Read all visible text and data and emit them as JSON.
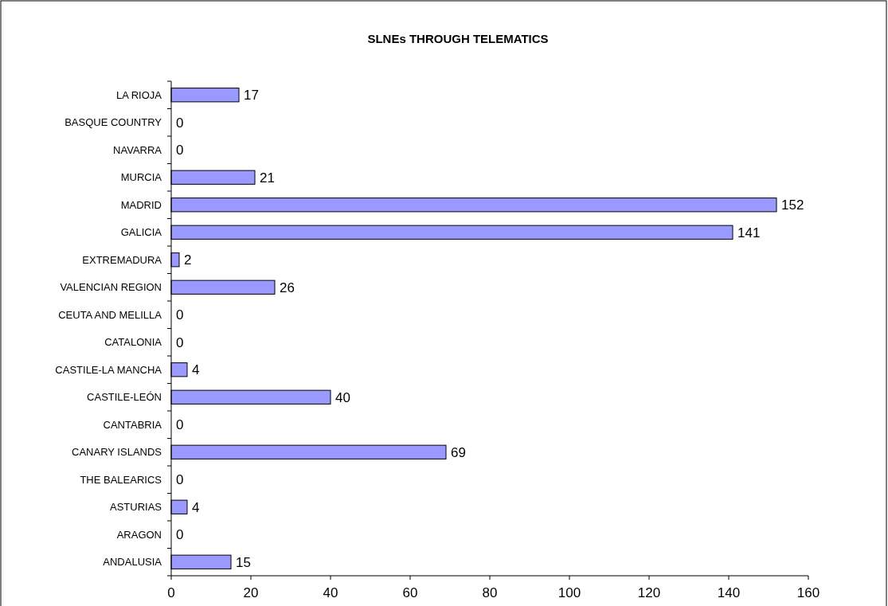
{
  "chart_data": {
    "type": "bar",
    "orientation": "horizontal",
    "title": "SLNEs THROUGH TELEMATICS",
    "categories": [
      "LA RIOJA",
      "BASQUE COUNTRY",
      "NAVARRA",
      "MURCIA",
      "MADRID",
      "GALICIA",
      "EXTREMADURA",
      "VALENCIAN REGION",
      "CEUTA AND MELILLA",
      "CATALONIA",
      "CASTILE-LA MANCHA",
      "CASTILE-LEÓN",
      "CANTABRIA",
      "CANARY ISLANDS",
      "THE BALEARICS",
      "ASTURIAS",
      "ARAGON",
      "ANDALUSIA"
    ],
    "values": [
      17,
      0,
      0,
      21,
      152,
      141,
      2,
      26,
      0,
      0,
      4,
      40,
      0,
      69,
      0,
      4,
      0,
      15
    ],
    "color": "#9999ff",
    "xlim": [
      0,
      160
    ],
    "xticks": [
      0,
      20,
      40,
      60,
      80,
      100,
      120,
      140,
      160
    ],
    "data_labels": true,
    "grid": false
  }
}
